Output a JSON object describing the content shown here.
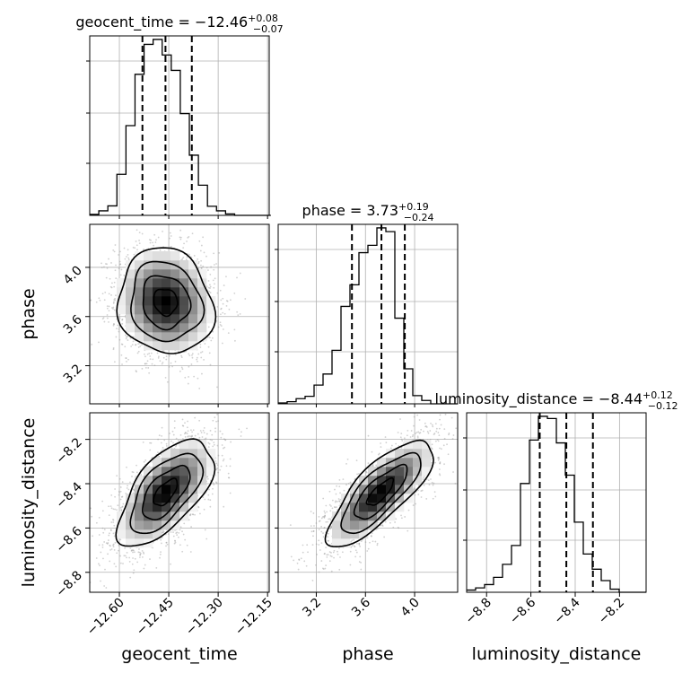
{
  "chart_data": {
    "type": "corner",
    "params": [
      "geocent_time",
      "phase",
      "luminosity_distance"
    ],
    "axis_labels": [
      "geocent_time",
      "phase",
      "luminosity_distance"
    ],
    "ranges": [
      [
        -12.69,
        -12.145
      ],
      [
        2.89,
        4.35
      ],
      [
        -8.89,
        -8.08
      ]
    ],
    "ticks": {
      "geocent_time": {
        "values": [
          -12.6,
          -12.45,
          -12.3,
          -12.15
        ],
        "labels": [
          "−12.60",
          "−12.45",
          "−12.30",
          "−12.15"
        ]
      },
      "phase": {
        "values": [
          3.2,
          3.6,
          4.0
        ],
        "labels": [
          "3.2",
          "3.6",
          "4.0"
        ]
      },
      "luminosity_distance": {
        "values": [
          -8.8,
          -8.6,
          -8.4,
          -8.2
        ],
        "labels": [
          "−8.8",
          "−8.6",
          "−8.4",
          "−8.2"
        ]
      }
    },
    "titles": [
      {
        "name": "geocent_time",
        "median": "−12.46",
        "plus": "+0.08",
        "minus": "−0.07"
      },
      {
        "name": "phase",
        "median": "3.73",
        "plus": "+0.19",
        "minus": "−0.24"
      },
      {
        "name": "luminosity_distance",
        "median": "−8.44",
        "plus": "+0.12",
        "minus": "−0.12"
      }
    ],
    "quantiles": [
      [
        -12.53,
        -12.46,
        -12.38
      ],
      [
        3.49,
        3.73,
        3.92
      ],
      [
        -8.56,
        -8.44,
        -8.32
      ]
    ],
    "histograms": [
      {
        "param": "geocent_time",
        "edges_start": -12.69,
        "bin_width": 0.0275,
        "counts": [
          0.5,
          2.3,
          4.8,
          20.8,
          45.5,
          71.5,
          86.7,
          89.2,
          81.3,
          73.5,
          51.6,
          30.5,
          15.3,
          4.6,
          2.3,
          0.7,
          0,
          0,
          0,
          0
        ]
      },
      {
        "param": "phase",
        "edges_start": 2.89,
        "bin_width": 0.073,
        "counts": [
          0.5,
          1.2,
          2.9,
          4.2,
          10.5,
          16.7,
          30.0,
          54.6,
          66.7,
          84.7,
          88.8,
          98.6,
          96.5,
          48.0,
          19.6,
          4.6,
          1.9,
          0,
          0,
          0
        ]
      },
      {
        "param": "luminosity_distance",
        "edges_start": -8.89,
        "bin_width": 0.0405,
        "counts": [
          1.0,
          2.0,
          3.5,
          6.8,
          12.7,
          21.3,
          49.5,
          69.3,
          80.1,
          79.1,
          68.0,
          53.3,
          31.9,
          17.4,
          10.5,
          5.3,
          1.4,
          0,
          0,
          0
        ]
      }
    ],
    "correlations": {
      "geocent_time|phase": -0.1,
      "geocent_time|luminosity_distance": 0.62,
      "phase|luminosity_distance": 0.78
    },
    "marginals": [
      {
        "mean": -12.46,
        "sd": 0.072
      },
      {
        "mean": 3.72,
        "sd": 0.215
      },
      {
        "mean": -8.44,
        "sd": 0.12
      }
    ],
    "contour_levels_sigma": [
      0.5,
      1.0,
      1.5,
      2.0
    ]
  }
}
